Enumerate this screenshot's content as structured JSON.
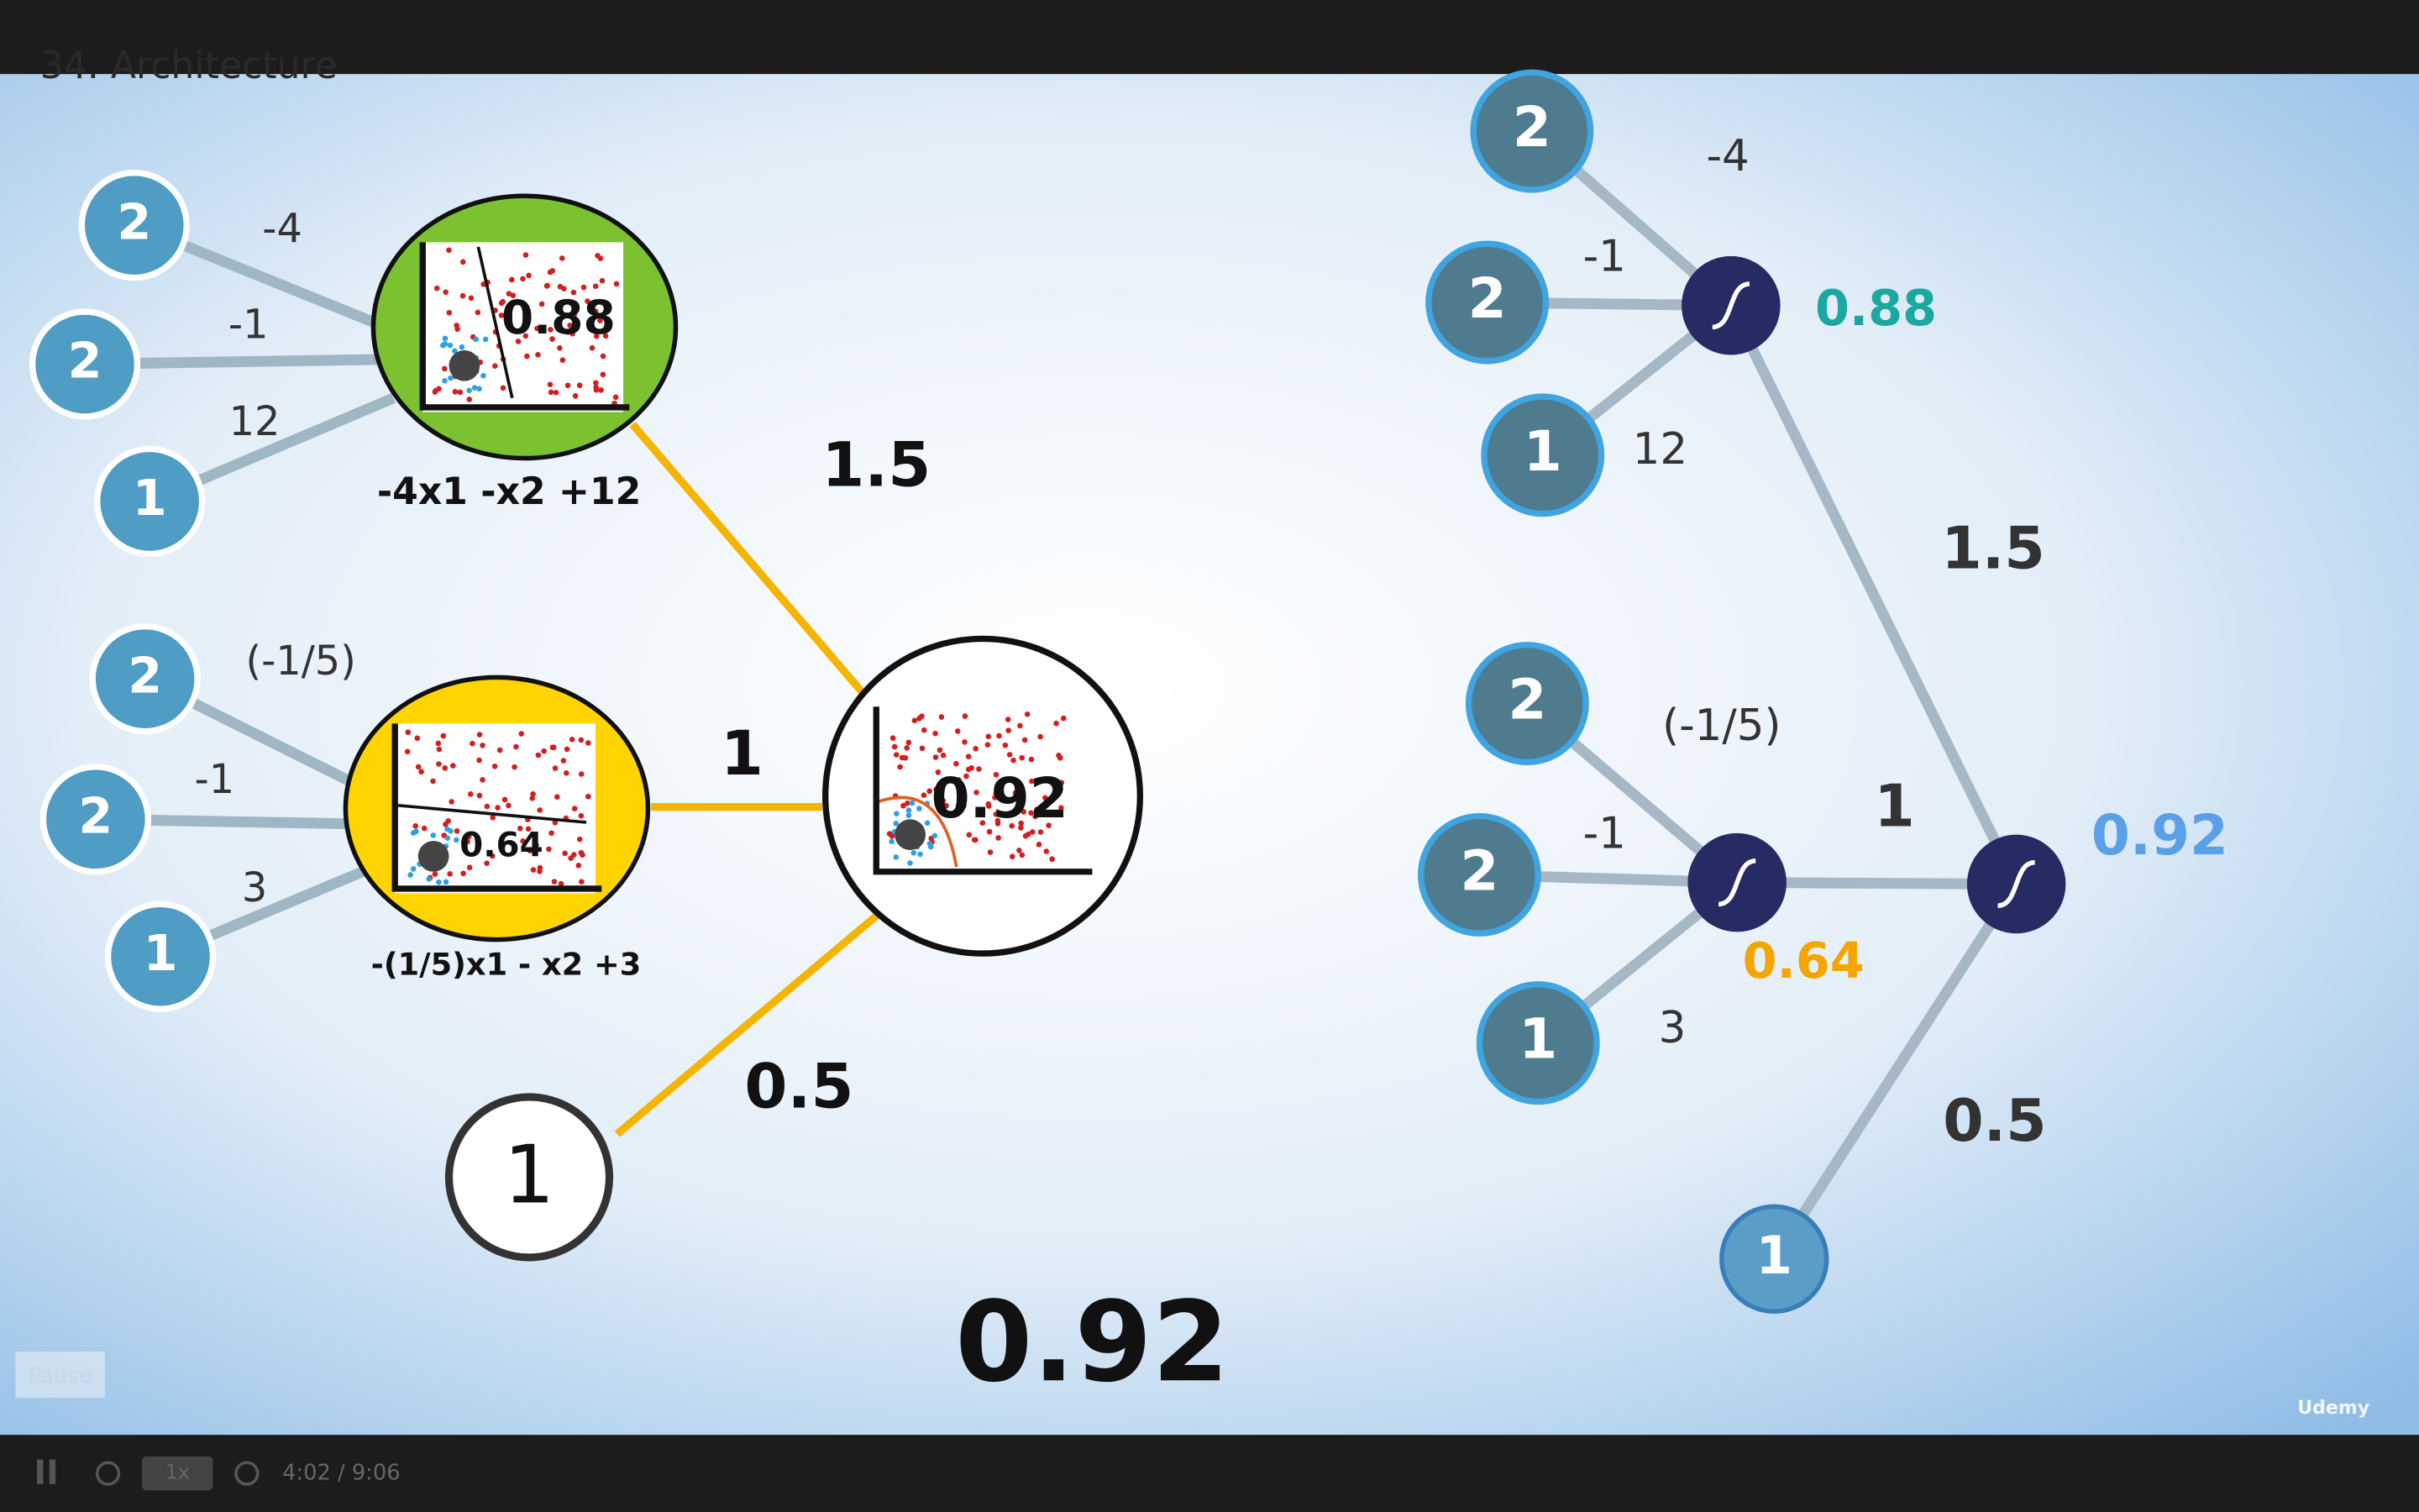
{
  "player": {
    "title": "34. Architecture",
    "pause": "Pause",
    "speed": "1x",
    "time": "4:02 / 9:06",
    "brand": "Udemy"
  },
  "left": {
    "perceptrons": [
      {
        "inputs": [
          "2",
          "2",
          "1"
        ],
        "weights": [
          "-4",
          "-1",
          "12"
        ],
        "output": "0.88",
        "equation": "-4x1 -x2 +12"
      },
      {
        "inputs": [
          "2",
          "2",
          "1"
        ],
        "weights": [
          "(-1/5)",
          "-1",
          "3"
        ],
        "output": "0.64",
        "equation": "-(1/5)x1 - x2 +3"
      }
    ],
    "output_weights": [
      "1.5",
      "1",
      "0.5"
    ],
    "bias": "1",
    "output": "0.92",
    "result": "0.92"
  },
  "right": {
    "perceptrons": [
      {
        "inputs": [
          "2",
          "2",
          "1"
        ],
        "weights": [
          "-4",
          "-1",
          "12"
        ],
        "output": "0.88"
      },
      {
        "inputs": [
          "2",
          "2",
          "1"
        ],
        "weights": [
          "(-1/5)",
          "-1",
          "3"
        ],
        "output": "0.64"
      }
    ],
    "output_weights": [
      "1.5",
      "1",
      "0.5"
    ],
    "bias": "1",
    "output": "0.92"
  }
}
